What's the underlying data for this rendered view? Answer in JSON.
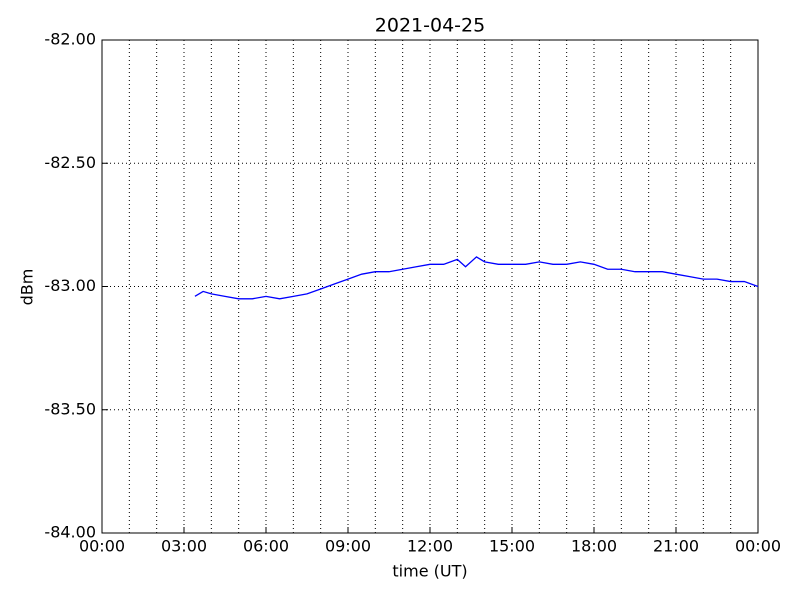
{
  "chart_data": {
    "type": "line",
    "title": "2021-04-25",
    "x_label": "time (UT)",
    "y_label": "dBm",
    "x": [
      3.4,
      3.7,
      4.0,
      4.5,
      5.0,
      5.5,
      6.0,
      6.5,
      7.0,
      7.5,
      8.0,
      8.5,
      9.0,
      9.5,
      10.0,
      10.5,
      11.0,
      11.5,
      12.0,
      12.5,
      13.0,
      13.3,
      13.7,
      14.0,
      14.5,
      15.0,
      15.5,
      16.0,
      16.5,
      17.0,
      17.5,
      18.0,
      18.5,
      19.0,
      19.5,
      20.0,
      20.5,
      21.0,
      21.5,
      22.0,
      22.5,
      23.0,
      23.5,
      24.0
    ],
    "series": [
      {
        "color": "#0000ff",
        "values": [
          -83.04,
          -83.02,
          -83.03,
          -83.04,
          -83.05,
          -83.05,
          -83.04,
          -83.05,
          -83.04,
          -83.03,
          -83.01,
          -82.99,
          -82.97,
          -82.95,
          -82.94,
          -82.94,
          -82.93,
          -82.92,
          -82.91,
          -82.91,
          -82.89,
          -82.92,
          -82.88,
          -82.9,
          -82.91,
          -82.91,
          -82.91,
          -82.9,
          -82.91,
          -82.91,
          -82.9,
          -82.91,
          -82.93,
          -82.93,
          -82.94,
          -82.94,
          -82.94,
          -82.95,
          -82.96,
          -82.97,
          -82.97,
          -82.98,
          -82.98,
          -83.0
        ]
      }
    ],
    "xlim": [
      0,
      24
    ],
    "xticks": [
      {
        "value": 0,
        "label": "00:00"
      },
      {
        "value": 3,
        "label": "03:00"
      },
      {
        "value": 6,
        "label": "06:00"
      },
      {
        "value": 9,
        "label": "09:00"
      },
      {
        "value": 12,
        "label": "12:00"
      },
      {
        "value": 15,
        "label": "15:00"
      },
      {
        "value": 18,
        "label": "18:00"
      },
      {
        "value": 21,
        "label": "21:00"
      },
      {
        "value": 24,
        "label": "00:00"
      }
    ],
    "xminorticks": [
      1,
      2,
      4,
      5,
      7,
      8,
      10,
      11,
      13,
      14,
      16,
      17,
      19,
      20,
      22,
      23
    ],
    "ylim": [
      -84,
      -82
    ],
    "yticks": [
      {
        "value": -84,
        "label": "-84.00"
      },
      {
        "value": -83.5,
        "label": "-83.50"
      },
      {
        "value": -83,
        "label": "-83.00"
      },
      {
        "value": -82.5,
        "label": "-82.50"
      },
      {
        "value": -82,
        "label": "-82.00"
      }
    ],
    "grid": true
  }
}
